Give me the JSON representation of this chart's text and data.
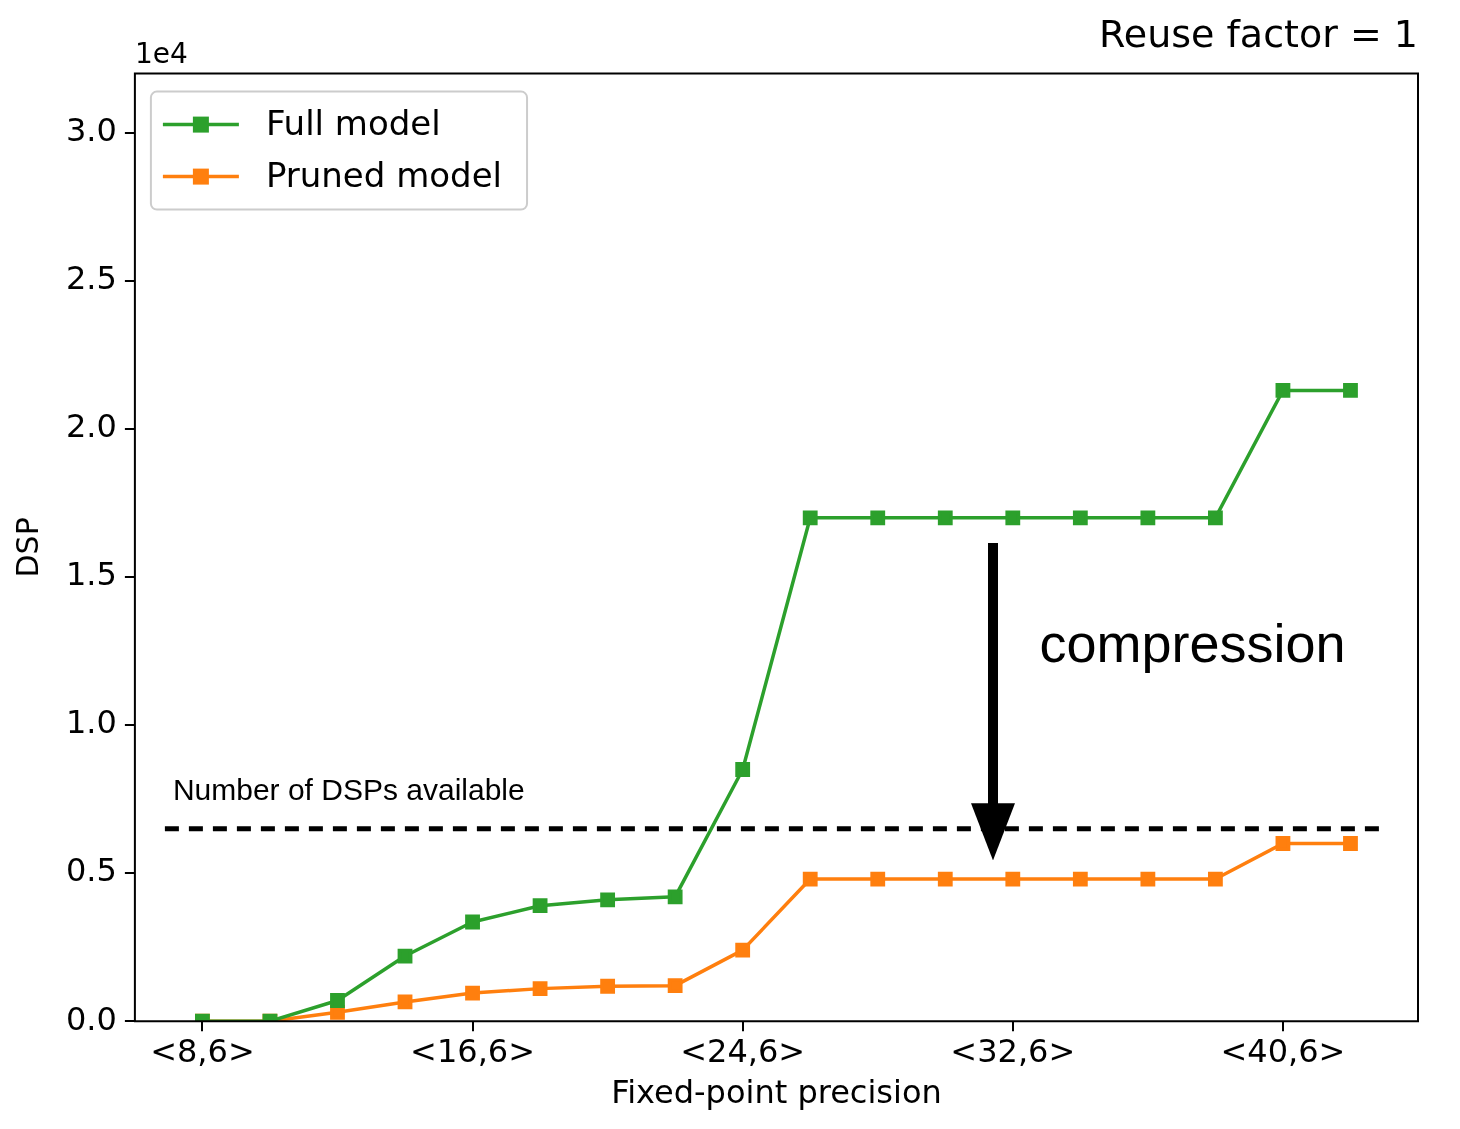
{
  "chart_data": {
    "type": "line",
    "title": "Reuse factor = 1",
    "xlabel": "Fixed-point precision",
    "ylabel": "DSP",
    "categories": [
      "<8,6>",
      null,
      null,
      null,
      "<16,6>",
      null,
      null,
      null,
      "<24,6>",
      null,
      null,
      null,
      "<32,6>",
      null,
      null,
      null,
      "<40,6>",
      null
    ],
    "series": [
      {
        "name": "Full model",
        "color": "#2ca02c",
        "values": [
          0,
          0,
          0.07,
          0.22,
          0.335,
          0.39,
          0.41,
          0.42,
          0.85,
          1.7,
          1.7,
          1.7,
          1.7,
          1.7,
          1.7,
          1.7,
          2.13,
          2.13
        ]
      },
      {
        "name": "Pruned model",
        "color": "#ff7f0e",
        "values": [
          0,
          0,
          0.03,
          0.065,
          0.095,
          0.11,
          0.118,
          0.12,
          0.24,
          0.48,
          0.48,
          0.48,
          0.48,
          0.48,
          0.48,
          0.48,
          0.6,
          0.6
        ]
      }
    ],
    "ylim": [
      0,
      3.2
    ],
    "yticks": [
      {
        "value": 0,
        "label": "0.0"
      },
      {
        "value": 0.5,
        "label": "0.5"
      },
      {
        "value": 1,
        "label": "1.0"
      },
      {
        "value": 1.5,
        "label": "1.5"
      },
      {
        "value": 2,
        "label": "2.0"
      },
      {
        "value": 2.5,
        "label": "2.5"
      },
      {
        "value": 3,
        "label": "3.0"
      }
    ],
    "ref_lines": [
      {
        "axis": "y",
        "value": 0.65,
        "label": "Number of DSPs available",
        "color": "#000000",
        "line_style": "dashed"
      }
    ],
    "annotations": [
      "1e4",
      "compression"
    ],
    "legend": "top left",
    "grid": false,
    "marker": "square",
    "line_style": "solid"
  }
}
